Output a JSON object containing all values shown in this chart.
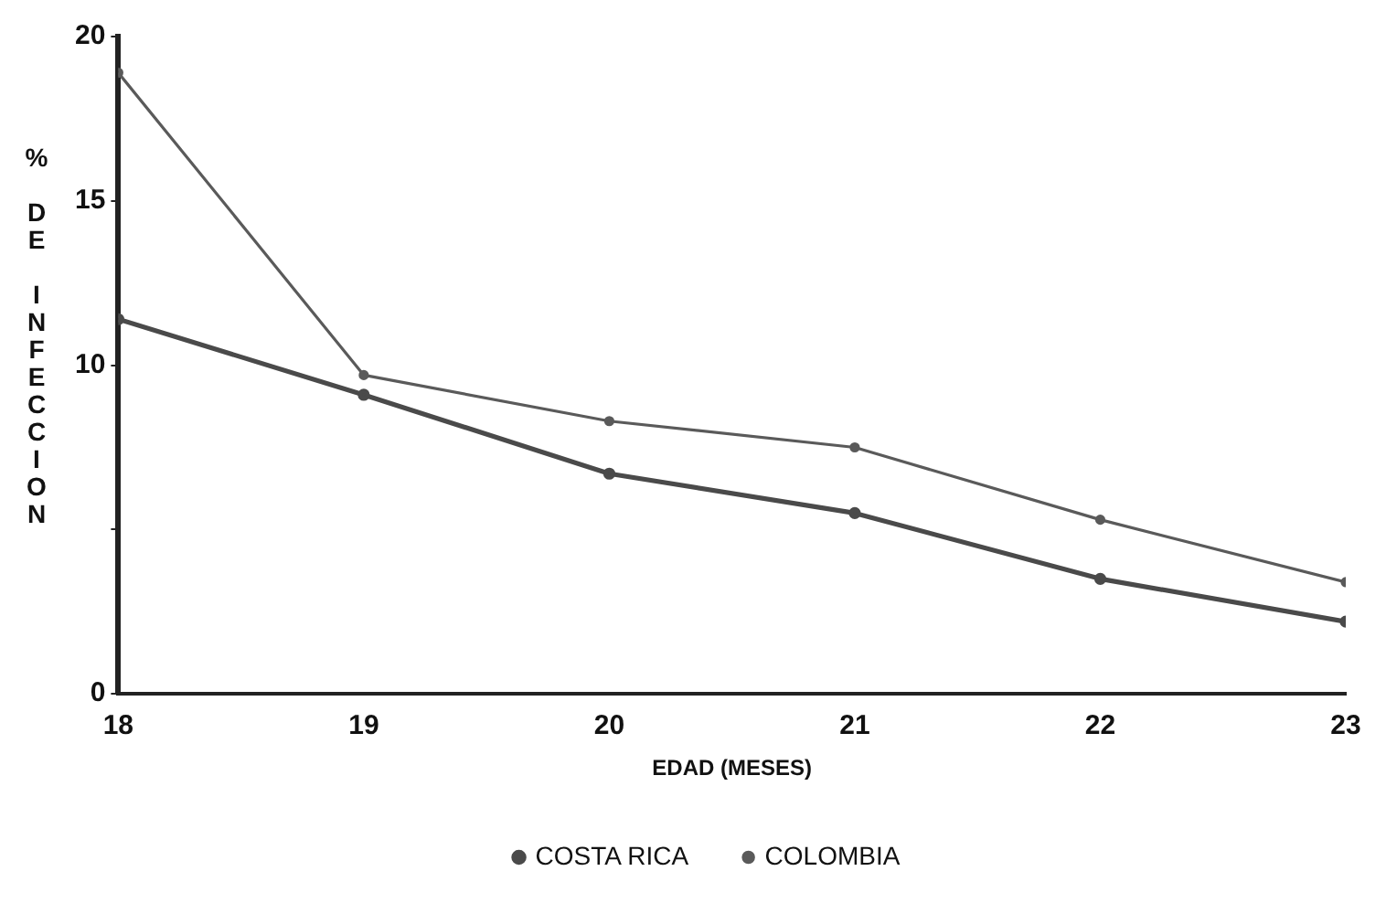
{
  "chart_data": {
    "type": "line",
    "xlabel": "EDAD (MESES)",
    "ylabel": "% DE INFECCION",
    "x": [
      18,
      19,
      20,
      21,
      22,
      23
    ],
    "series": [
      {
        "name": "COSTA RICA",
        "color": "#4a4a4a",
        "values": [
          11.4,
          9.1,
          6.7,
          5.5,
          3.5,
          2.2
        ]
      },
      {
        "name": "COLOMBIA",
        "color": "#5a5a5a",
        "values": [
          18.9,
          9.7,
          8.3,
          7.5,
          5.3,
          3.4
        ]
      }
    ],
    "xlim": [
      18,
      23
    ],
    "xticks": [
      18,
      19,
      20,
      21,
      22,
      23
    ],
    "ylim": [
      0,
      20
    ],
    "yticks": [
      0,
      {
        "value": 5,
        "label": null
      },
      10,
      15,
      20
    ],
    "grid": false,
    "legend": "bottom",
    "marker": "circle",
    "line_style": "solid"
  }
}
